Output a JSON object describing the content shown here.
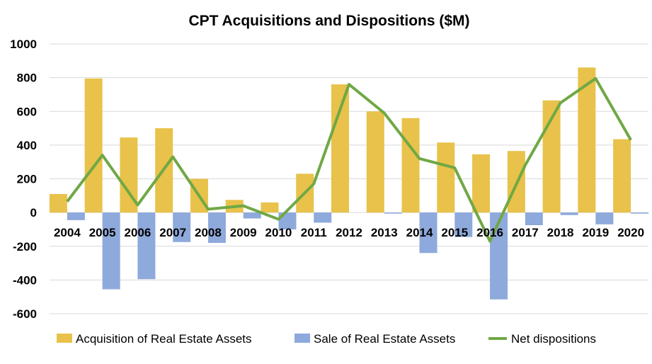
{
  "chart_data": {
    "type": "bar",
    "title": "CPT Acquisitions and Dispositions ($M)",
    "xlabel": "",
    "ylabel": "",
    "categories": [
      "2004",
      "2005",
      "2006",
      "2007",
      "2008",
      "2009",
      "2010",
      "2011",
      "2012",
      "2013",
      "2014",
      "2015",
      "2016",
      "2017",
      "2018",
      "2019",
      "2020"
    ],
    "ylim": [
      -600,
      1000
    ],
    "yticks": [
      -600,
      -400,
      -200,
      0,
      200,
      400,
      600,
      800,
      1000
    ],
    "grid": true,
    "legend_position": "bottom",
    "series": [
      {
        "name": "Acquisition of Real Estate Assets",
        "type": "bar",
        "color": "#E8C24A",
        "values": [
          110,
          795,
          445,
          500,
          200,
          75,
          60,
          230,
          760,
          600,
          560,
          415,
          345,
          365,
          665,
          860,
          435
        ]
      },
      {
        "name": "Sale of Real Estate Assets",
        "type": "bar",
        "color": "#8EA9DB",
        "values": [
          -45,
          -455,
          -395,
          -175,
          -180,
          -35,
          -100,
          -60,
          0,
          -5,
          -240,
          -145,
          -515,
          -75,
          -15,
          -70,
          -5
        ]
      },
      {
        "name": "Net dispositions",
        "type": "line",
        "color": "#70A845",
        "values": [
          65,
          340,
          45,
          330,
          20,
          40,
          -40,
          170,
          760,
          590,
          320,
          265,
          -170,
          280,
          650,
          795,
          430
        ]
      }
    ]
  }
}
